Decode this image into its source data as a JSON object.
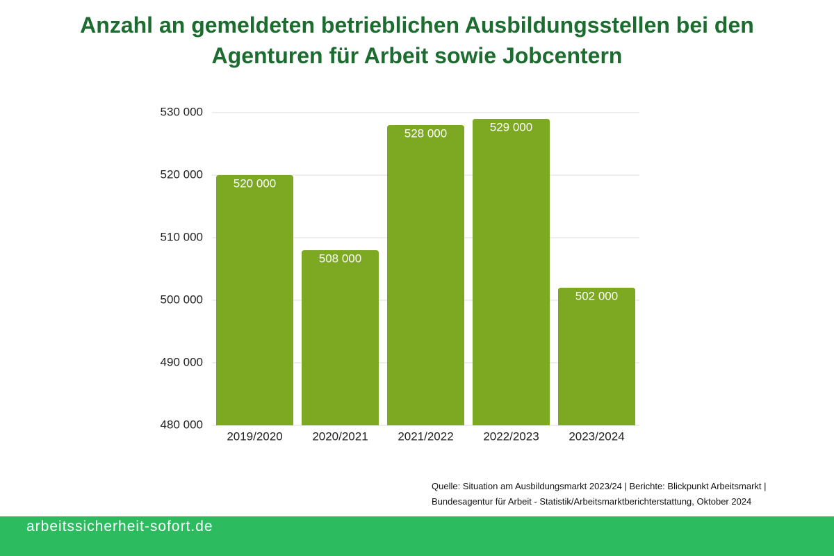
{
  "chart_data": {
    "type": "bar",
    "title": "Anzahl an gemeldeten betrieblichen Ausbildungsstellen bei den Agenturen für Arbeit sowie Jobcentern",
    "categories": [
      "2019/2020",
      "2020/2021",
      "2021/2022",
      "2022/2023",
      "2023/2024"
    ],
    "values": [
      520000,
      508000,
      528000,
      529000,
      502000
    ],
    "value_labels": [
      "520 000",
      "508 000",
      "528 000",
      "529 000",
      "502 000"
    ],
    "color": "#7ca822",
    "ylim": [
      480000,
      530000
    ],
    "yticks": [
      {
        "value": 480000,
        "label": "480 000"
      },
      {
        "value": 490000,
        "label": "490 000"
      },
      {
        "value": 500000,
        "label": "500 000"
      },
      {
        "value": 510000,
        "label": "510 000"
      },
      {
        "value": 520000,
        "label": "520 000"
      },
      {
        "value": 530000,
        "label": "530 000"
      }
    ],
    "grid": true,
    "source": "Quelle: Situation am Ausbildungsmarkt 2023/24 | Berichte: Blickpunkt Arbeitsmarkt | Bundesagentur für Arbeit - Statistik/Arbeitsmarktberichterstattung, Oktober 2024"
  },
  "footer": "arbeitssicherheit-sofort.de"
}
